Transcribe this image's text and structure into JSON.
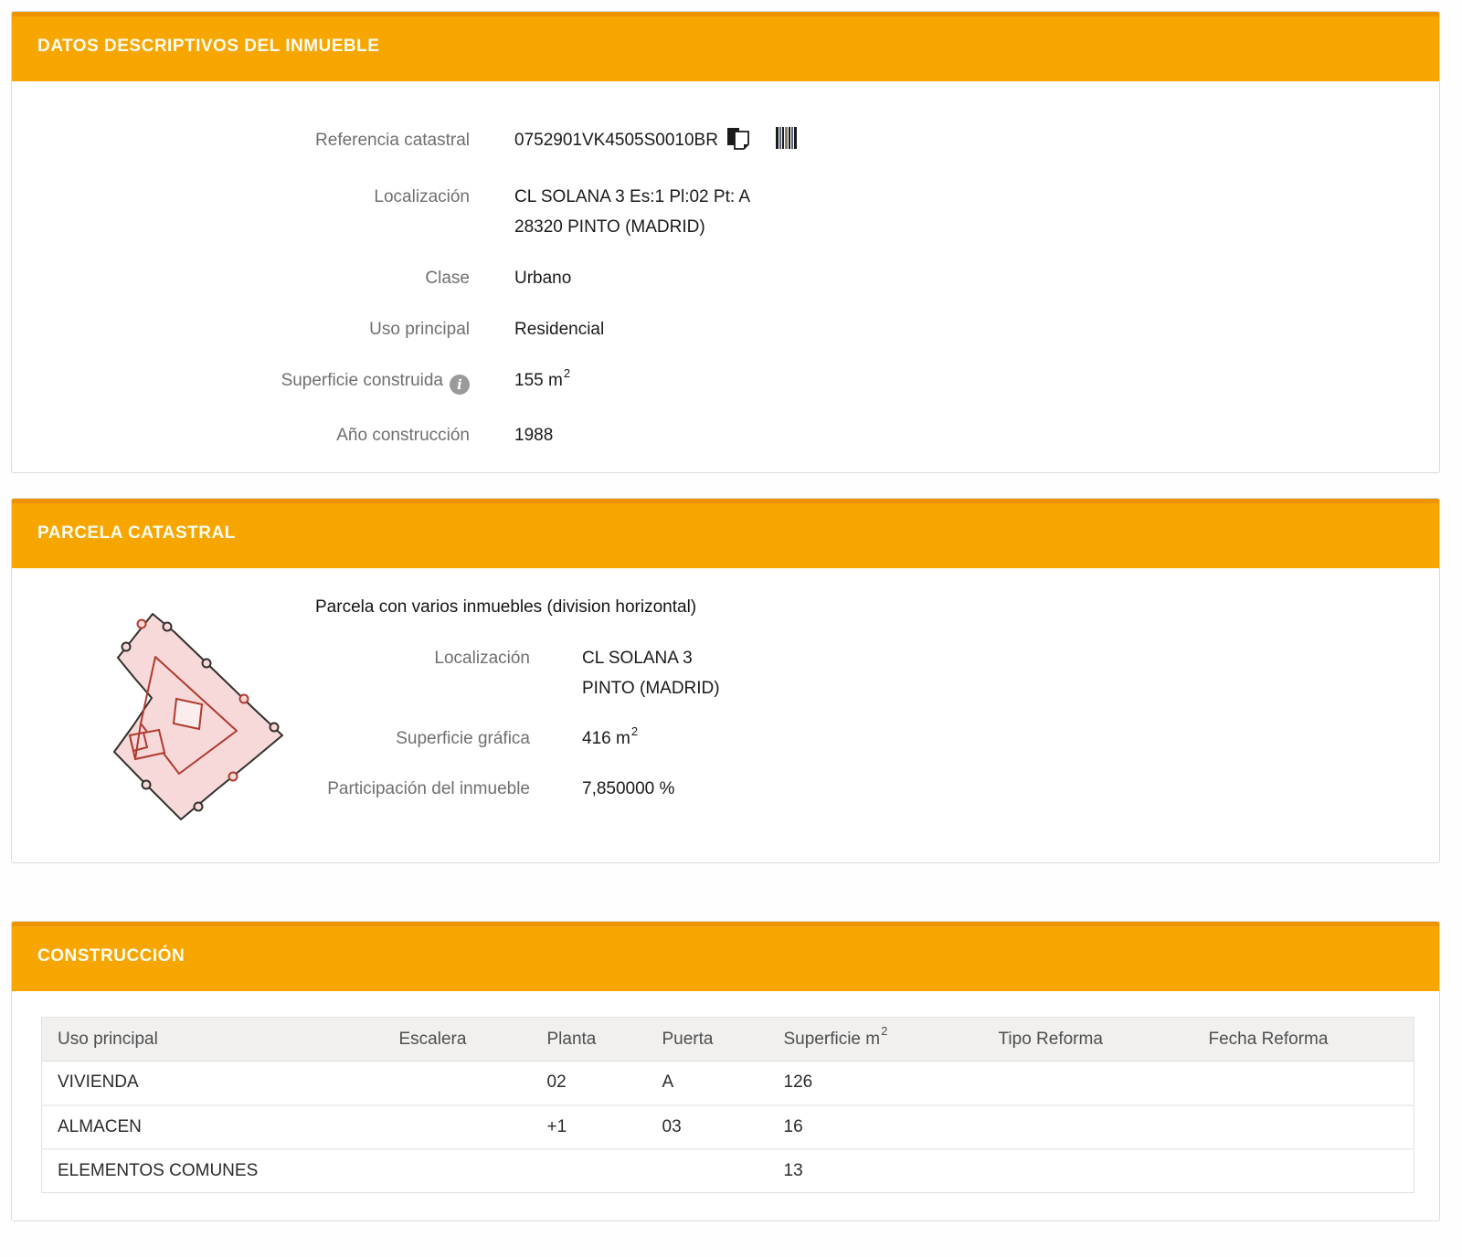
{
  "colors": {
    "accent": "#F7A600",
    "accent_top": "#EE9300",
    "header_text": "#FFFDF2",
    "parcel_fill": "#F7D9D9",
    "parcel_outline": "#33302D",
    "parcel_inner_line": "#B03A2E",
    "table_header_bg": "#F1F0EF"
  },
  "datos": {
    "title": "DATOS DESCRIPTIVOS DEL INMUEBLE",
    "ref_label": "Referencia catastral",
    "ref_value": "0752901VK4505S0010BR",
    "copy_icon": "copy-to-clipboard",
    "barcode_icon": "barcode",
    "info_glyph": "i",
    "loc_label": "Localización",
    "loc_line1": "CL SOLANA 3 Es:1 Pl:02 Pt: A",
    "loc_line2": "28320 PINTO (MADRID)",
    "clase_label": "Clase",
    "clase_value": "Urbano",
    "uso_label": "Uso principal",
    "uso_value": "Residencial",
    "superficie_label": "Superficie construida",
    "superficie_value": "155 m²",
    "anio_label": "Año construcción",
    "anio_value": "1988"
  },
  "parcela": {
    "title": "PARCELA CATASTRAL",
    "subtitle": "Parcela con varios inmuebles (division horizontal)",
    "loc_label": "Localización",
    "loc_line1": "CL SOLANA 3",
    "loc_line2": "PINTO (MADRID)",
    "superficie_label": "Superficie gráfica",
    "superficie_value": "416 m²",
    "participacion_label": "Participación del inmueble",
    "participacion_value": "7,850000 %"
  },
  "construccion": {
    "title": "CONSTRUCCIÓN",
    "table": {
      "headers": [
        "Uso principal",
        "Escalera",
        "Planta",
        "Puerta",
        "Superficie m²",
        "Tipo Reforma",
        "Fecha Reforma"
      ],
      "rows": [
        [
          "VIVIENDA",
          "",
          "02",
          "A",
          "126",
          "",
          ""
        ],
        [
          "ALMACEN",
          "",
          "+1",
          "03",
          "16",
          "",
          ""
        ],
        [
          "ELEMENTOS COMUNES",
          "",
          "",
          "",
          "13",
          "",
          ""
        ]
      ]
    }
  }
}
